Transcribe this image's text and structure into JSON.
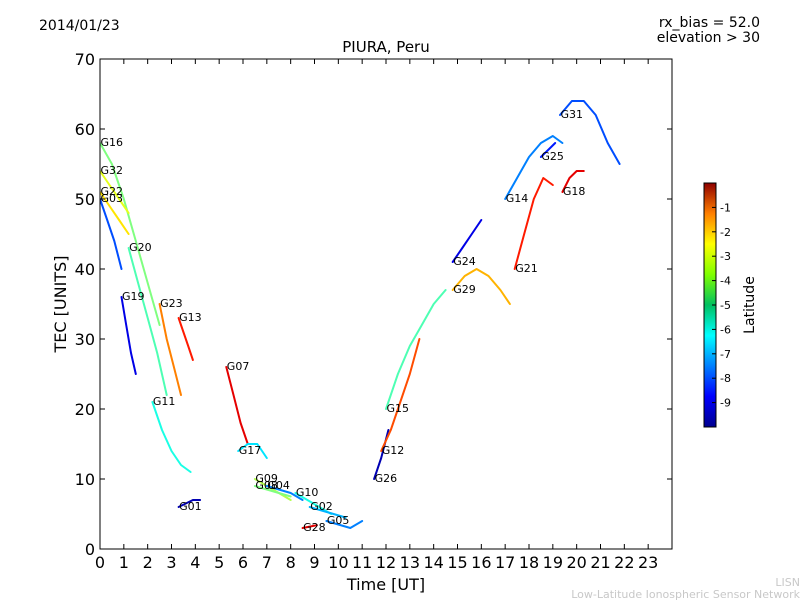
{
  "header": {
    "date": "2014/01/23",
    "rx_bias": "rx_bias = 52.0",
    "elevation": "elevation > 30"
  },
  "watermark": {
    "line1": "LISN",
    "line2": "Low-Latitude Ionospheric Sensor Network"
  },
  "chart_data": {
    "type": "line",
    "title": "PIURA, Peru",
    "xlabel": "Time [UT]",
    "ylabel": "TEC [UNITS]",
    "xlim": [
      0,
      24
    ],
    "ylim": [
      0,
      70
    ],
    "xticks": [
      "0",
      "1",
      "2",
      "3",
      "4",
      "5",
      "6",
      "7",
      "8",
      "9",
      "10",
      "11",
      "12",
      "13",
      "14",
      "15",
      "16",
      "17",
      "18",
      "19",
      "20",
      "21",
      "22",
      "23"
    ],
    "yticks": [
      "0",
      "10",
      "20",
      "30",
      "40",
      "50",
      "60",
      "70"
    ],
    "grid": false,
    "colorbar": {
      "label": "Latitude",
      "ticks": [
        "-1",
        "-2",
        "-3",
        "-4",
        "-5",
        "-6",
        "-7",
        "-8",
        "-9"
      ],
      "range": [
        -10,
        0
      ]
    },
    "series": [
      {
        "name": "G16",
        "label": "G16",
        "lat": -5.0,
        "x": [
          0.0,
          0.5,
          1.0,
          1.5,
          2.0,
          2.5
        ],
        "y": [
          58,
          55,
          50,
          44,
          38,
          32
        ]
      },
      {
        "name": "G32",
        "label": "G32",
        "lat": -4.0,
        "x": [
          0.0,
          0.4,
          0.8,
          1.2
        ],
        "y": [
          54,
          52,
          50,
          48
        ]
      },
      {
        "name": "G22",
        "label": "G22",
        "lat": -3.5,
        "x": [
          0.0,
          0.4,
          0.8,
          1.2
        ],
        "y": [
          51,
          49,
          47,
          45
        ]
      },
      {
        "name": "G03",
        "label": "G03",
        "lat": -8.0,
        "x": [
          0.0,
          0.3,
          0.6,
          0.9
        ],
        "y": [
          50,
          47,
          44,
          40
        ]
      },
      {
        "name": "G20",
        "label": "G20",
        "lat": -5.5,
        "x": [
          1.2,
          1.6,
          2.0,
          2.4,
          2.8
        ],
        "y": [
          43,
          38,
          33,
          28,
          22
        ]
      },
      {
        "name": "G19",
        "label": "G19",
        "lat": -9.0,
        "x": [
          0.9,
          1.1,
          1.3,
          1.5
        ],
        "y": [
          36,
          32,
          28,
          25
        ]
      },
      {
        "name": "G23",
        "label": "G23",
        "lat": -2.5,
        "x": [
          2.5,
          2.8,
          3.1,
          3.4
        ],
        "y": [
          35,
          30,
          26,
          22
        ]
      },
      {
        "name": "G13",
        "label": "G13",
        "lat": -1.5,
        "x": [
          3.3,
          3.5,
          3.7,
          3.9
        ],
        "y": [
          33,
          31,
          29,
          27
        ]
      },
      {
        "name": "G11",
        "label": "G11",
        "lat": -6.0,
        "x": [
          2.2,
          2.6,
          3.0,
          3.4,
          3.8
        ],
        "y": [
          21,
          17,
          14,
          12,
          11
        ]
      },
      {
        "name": "G07",
        "label": "G07",
        "lat": -1.0,
        "x": [
          5.3,
          5.6,
          5.9,
          6.2
        ],
        "y": [
          26,
          22,
          18,
          15
        ]
      },
      {
        "name": "G17",
        "label": "G17",
        "lat": -6.5,
        "x": [
          5.8,
          6.2,
          6.6,
          7.0
        ],
        "y": [
          14,
          15,
          15,
          13
        ]
      },
      {
        "name": "G09",
        "label": "G09",
        "lat": -4.5,
        "x": [
          6.5,
          7.0,
          7.5,
          8.0
        ],
        "y": [
          10,
          9,
          8,
          7
        ]
      },
      {
        "name": "G08",
        "label": "G08",
        "lat": -5.0,
        "x": [
          6.5,
          7.0,
          7.5,
          8.0
        ],
        "y": [
          9,
          8.5,
          8,
          7.5
        ]
      },
      {
        "name": "G04",
        "label": "G04",
        "lat": -7.5,
        "x": [
          7.0,
          7.5,
          8.0,
          8.5
        ],
        "y": [
          9,
          8.5,
          8,
          7
        ]
      },
      {
        "name": "G01",
        "label": "G01",
        "lat": -9.5,
        "x": [
          3.3,
          3.6,
          3.9,
          4.2
        ],
        "y": [
          6,
          6.5,
          7,
          7
        ]
      },
      {
        "name": "G10",
        "label": "G10",
        "lat": -6.0,
        "x": [
          8.2,
          8.7,
          9.2,
          9.7
        ],
        "y": [
          8,
          7,
          6,
          5
        ]
      },
      {
        "name": "G02",
        "label": "G02",
        "lat": -7.0,
        "x": [
          8.8,
          9.3,
          9.8,
          10.3
        ],
        "y": [
          6,
          5.5,
          5,
          4.5
        ]
      },
      {
        "name": "G28",
        "label": "G28",
        "lat": -1.0,
        "x": [
          8.5,
          8.8,
          9.1
        ],
        "y": [
          3,
          3.2,
          3.4
        ]
      },
      {
        "name": "G05",
        "label": "G05",
        "lat": -7.5,
        "x": [
          9.5,
          10.0,
          10.5,
          11.0
        ],
        "y": [
          4,
          3.5,
          3,
          4
        ]
      },
      {
        "name": "G26",
        "label": "G26",
        "lat": -9.5,
        "x": [
          11.5,
          11.8,
          12.1
        ],
        "y": [
          10,
          13,
          17
        ]
      },
      {
        "name": "G12",
        "label": "G12",
        "lat": -2.0,
        "x": [
          11.8,
          12.2,
          12.6,
          13.0,
          13.4
        ],
        "y": [
          14,
          17,
          21,
          25,
          30
        ]
      },
      {
        "name": "G15",
        "label": "G15",
        "lat": -5.5,
        "x": [
          12.0,
          12.5,
          13.0,
          13.5,
          14.0,
          14.5
        ],
        "y": [
          20,
          25,
          29,
          32,
          35,
          37
        ]
      },
      {
        "name": "G24",
        "label": "G24",
        "lat": -9.0,
        "x": [
          14.8,
          15.2,
          15.6,
          16.0
        ],
        "y": [
          41,
          43,
          45,
          47
        ]
      },
      {
        "name": "G29",
        "label": "G29",
        "lat": -3.0,
        "x": [
          14.8,
          15.3,
          15.8,
          16.3,
          16.8,
          17.2
        ],
        "y": [
          37,
          39,
          40,
          39,
          37,
          35
        ]
      },
      {
        "name": "G21",
        "label": "G21",
        "lat": -1.5,
        "x": [
          17.4,
          17.8,
          18.2,
          18.6,
          19.0
        ],
        "y": [
          40,
          45,
          50,
          53,
          52
        ]
      },
      {
        "name": "G14",
        "label": "G14",
        "lat": -7.5,
        "x": [
          17.0,
          17.5,
          18.0,
          18.5,
          19.0,
          19.4
        ],
        "y": [
          50,
          53,
          56,
          58,
          59,
          58
        ]
      },
      {
        "name": "G25",
        "label": "G25",
        "lat": -8.5,
        "x": [
          18.5,
          18.8,
          19.1
        ],
        "y": [
          56,
          57,
          58
        ]
      },
      {
        "name": "G31",
        "label": "G31",
        "lat": -8.0,
        "x": [
          19.3,
          19.8,
          20.3,
          20.8,
          21.3,
          21.8
        ],
        "y": [
          62,
          64,
          64,
          62,
          58,
          55
        ]
      },
      {
        "name": "G18",
        "label": "G18",
        "lat": -1.0,
        "x": [
          19.4,
          19.7,
          20.0,
          20.3
        ],
        "y": [
          51,
          53,
          54,
          54
        ]
      }
    ]
  }
}
